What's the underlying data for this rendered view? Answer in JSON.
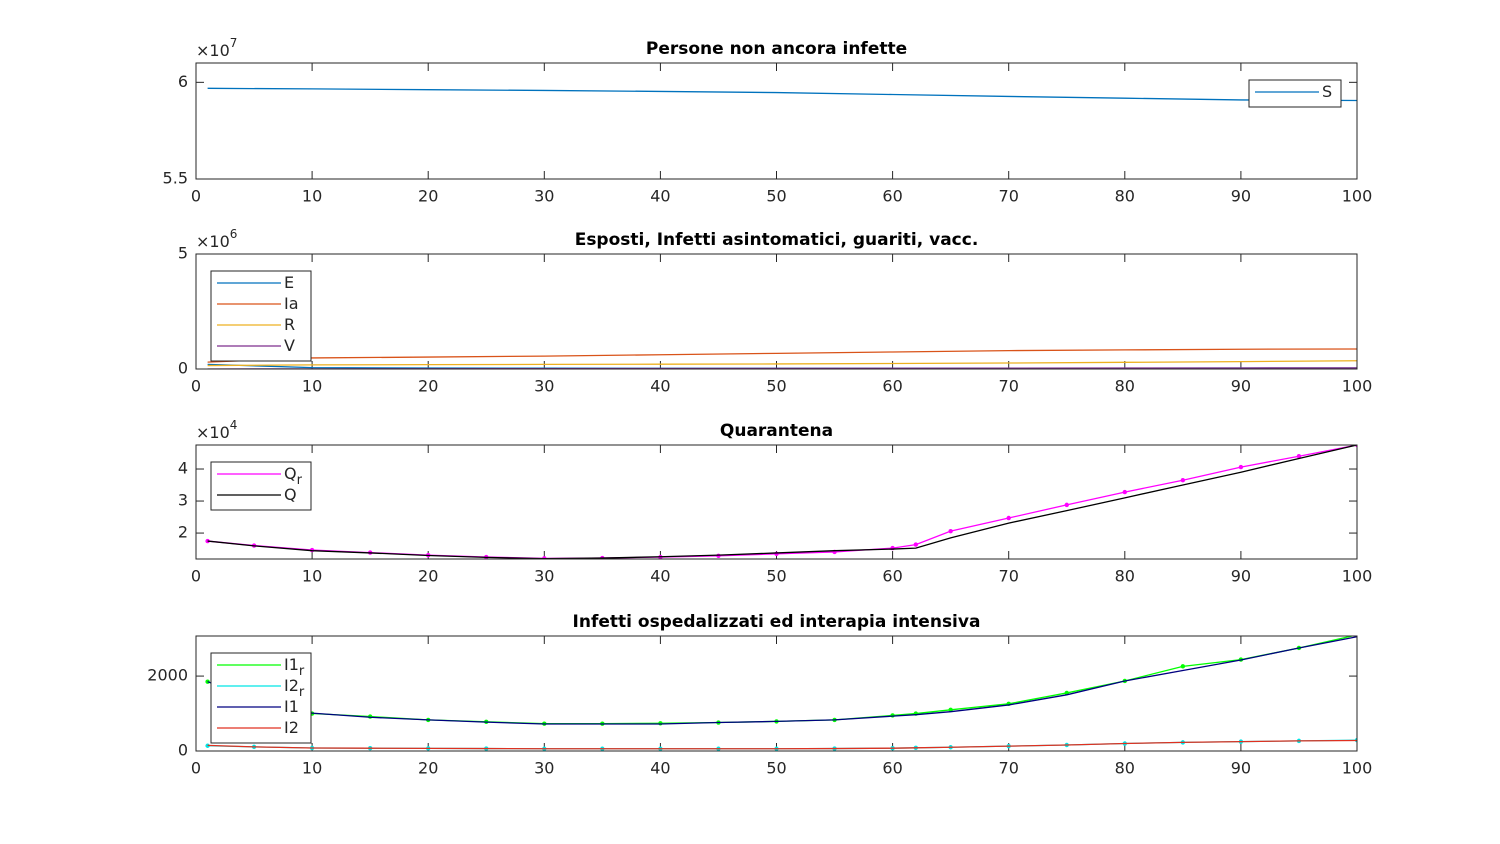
{
  "chart_data": [
    {
      "type": "line",
      "title": "Persone non ancora infette",
      "y_exponent_base": "×10",
      "y_exponent_power": "7",
      "x": [
        1,
        10,
        20,
        30,
        40,
        50,
        60,
        70,
        80,
        90,
        100
      ],
      "xlim": [
        0,
        100
      ],
      "xticks": [
        0,
        10,
        20,
        30,
        40,
        50,
        60,
        70,
        80,
        90,
        100
      ],
      "ylim": [
        55000000,
        61000000
      ],
      "yticks": [
        {
          "value": 55000000,
          "label": "5.5"
        },
        {
          "value": 60000000,
          "label": "6"
        }
      ],
      "legend": "northeast",
      "series": [
        {
          "name": "S",
          "color": "#0072bd",
          "values": [
            59690000,
            59660000,
            59620000,
            59580000,
            59530000,
            59470000,
            59370000,
            59270000,
            59180000,
            59090000,
            59060000
          ]
        }
      ]
    },
    {
      "type": "line",
      "title": "Esposti, Infetti asintomatici, guariti, vacc.",
      "y_exponent_base": "×10",
      "y_exponent_power": "6",
      "x": [
        1,
        10,
        20,
        30,
        40,
        50,
        60,
        70,
        80,
        90,
        100
      ],
      "xlim": [
        0,
        100
      ],
      "xticks": [
        0,
        10,
        20,
        30,
        40,
        50,
        60,
        70,
        80,
        90,
        100
      ],
      "ylim": [
        0,
        5000000
      ],
      "yticks": [
        0,
        {
          "value": 5000000,
          "label": "5"
        }
      ],
      "legend": "northwest",
      "series": [
        {
          "name": "E",
          "color": "#0072bd",
          "values": [
            200000,
            60000,
            40000,
            35000,
            30000,
            30000,
            30000,
            35000,
            35000,
            40000,
            40000
          ]
        },
        {
          "name": "Ia",
          "color": "#d95319",
          "values": [
            300000,
            480000,
            520000,
            560000,
            620000,
            680000,
            740000,
            800000,
            830000,
            860000,
            870000
          ]
        },
        {
          "name": "R",
          "color": "#edb120",
          "values": [
            150000,
            180000,
            190000,
            200000,
            210000,
            220000,
            240000,
            260000,
            290000,
            320000,
            360000
          ]
        },
        {
          "name": "V",
          "color": "#7e2f8e",
          "values": [
            0,
            5000,
            10000,
            15000,
            20000,
            25000,
            30000,
            35000,
            40000,
            45000,
            50000
          ]
        }
      ]
    },
    {
      "type": "line",
      "title": "Quarantena",
      "y_exponent_base": "×10",
      "y_exponent_power": "4",
      "x": [
        1,
        5,
        10,
        15,
        20,
        25,
        30,
        35,
        40,
        45,
        50,
        55,
        60,
        62,
        65,
        70,
        75,
        80,
        85,
        90,
        95,
        100
      ],
      "xlim": [
        0,
        100
      ],
      "xticks": [
        0,
        10,
        20,
        30,
        40,
        50,
        60,
        70,
        80,
        90,
        100
      ],
      "ylim": [
        11900,
        47500
      ],
      "yticks": [
        {
          "value": 20000,
          "label": "2"
        },
        {
          "value": 30000,
          "label": "3"
        },
        {
          "value": 40000,
          "label": "4"
        }
      ],
      "legend": "northwest",
      "series": [
        {
          "name": "Q",
          "name_subscript": "r",
          "color": "#ff00ff",
          "marker": "dot",
          "values": [
            17500,
            16100,
            14700,
            13900,
            13100,
            12500,
            12100,
            12200,
            12500,
            12900,
            13500,
            14100,
            15300,
            16400,
            20600,
            24700,
            28800,
            32800,
            36500,
            40600,
            44000,
            47500
          ]
        },
        {
          "name": "Q",
          "color": "#000000",
          "values": [
            17500,
            16000,
            14500,
            13800,
            13000,
            12400,
            12000,
            12200,
            12600,
            13100,
            13800,
            14500,
            15000,
            15300,
            18500,
            23100,
            27000,
            31000,
            35000,
            39000,
            43300,
            47500
          ]
        }
      ]
    },
    {
      "type": "line",
      "title": "Infetti ospedalizzati ed interapia intensiva",
      "x": [
        1,
        5,
        10,
        15,
        20,
        25,
        30,
        35,
        40,
        45,
        50,
        55,
        60,
        62,
        65,
        70,
        75,
        80,
        85,
        90,
        95,
        100
      ],
      "xlim": [
        0,
        100
      ],
      "xticks": [
        0,
        10,
        20,
        30,
        40,
        50,
        60,
        70,
        80,
        90,
        100
      ],
      "ylim": [
        0,
        3070
      ],
      "yticks": [
        0,
        2000
      ],
      "legend": "northwest",
      "series": [
        {
          "name": "I1",
          "name_subscript": "r",
          "color": "#00ff00",
          "marker": "dot",
          "values": [
            1850,
            1450,
            1000,
            920,
            830,
            780,
            730,
            730,
            740,
            760,
            790,
            830,
            950,
            1000,
            1100,
            1260,
            1550,
            1870,
            2260,
            2440,
            2750,
            3100
          ]
        },
        {
          "name": "I2",
          "name_subscript": "r",
          "color": "#00e5e5",
          "marker": "dot",
          "values": [
            140,
            110,
            80,
            75,
            70,
            65,
            60,
            60,
            60,
            60,
            60,
            65,
            75,
            85,
            100,
            130,
            160,
            200,
            230,
            250,
            270,
            290
          ]
        },
        {
          "name": "I1",
          "color": "#000080",
          "values": [
            1850,
            1400,
            1010,
            900,
            830,
            770,
            720,
            720,
            720,
            760,
            790,
            830,
            930,
            970,
            1050,
            1230,
            1500,
            1870,
            2150,
            2430,
            2750,
            3050
          ]
        },
        {
          "name": "I2",
          "color": "#e03020",
          "values": [
            150,
            110,
            80,
            75,
            70,
            65,
            60,
            60,
            60,
            60,
            60,
            65,
            75,
            85,
            100,
            130,
            160,
            200,
            230,
            250,
            270,
            280
          ]
        }
      ]
    }
  ]
}
